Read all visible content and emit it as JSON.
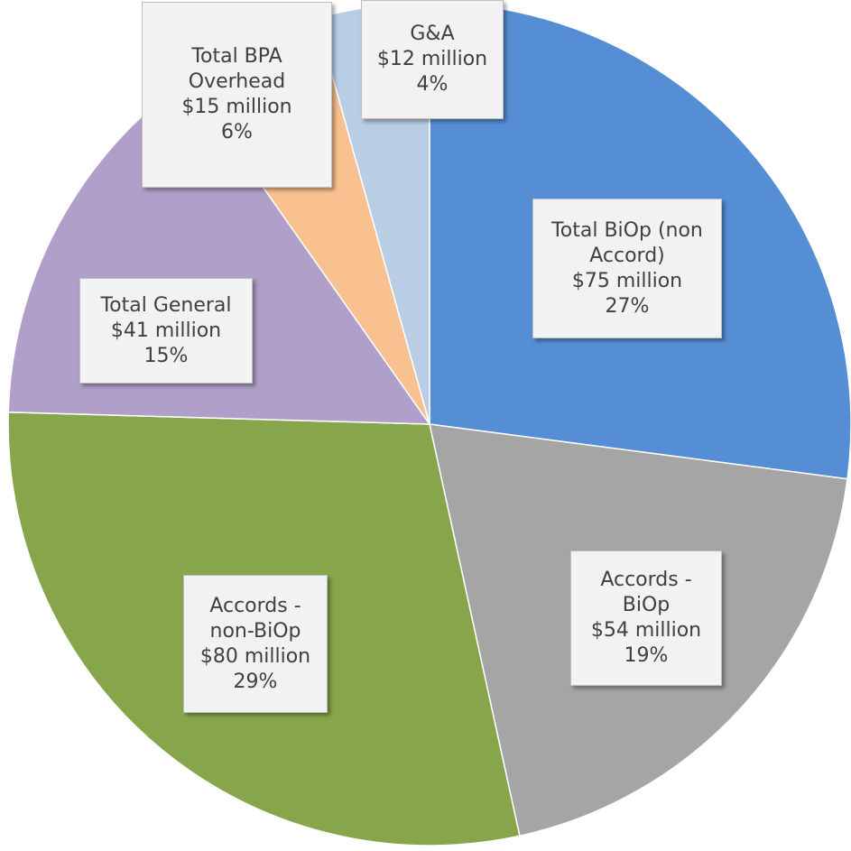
{
  "chart_data": {
    "type": "pie",
    "categories": [
      "Total BiOp (non Accord)",
      "Accords - BiOp",
      "Accords - non-BiOp",
      "Total General",
      "Total BPA Overhead",
      "G&A"
    ],
    "values": [
      75,
      54,
      80,
      41,
      15,
      12
    ],
    "value_labels": [
      "$75 million",
      "$54 million",
      "$80 million",
      "$41 million",
      "$15 million",
      "$12 million"
    ],
    "percentages": [
      27,
      19,
      29,
      15,
      6,
      4
    ],
    "percentage_labels": [
      "27%",
      "19%",
      "29%",
      "15%",
      "6%",
      "4%"
    ],
    "colors": [
      "#558ed5",
      "#a5a5a5",
      "#87a64c",
      "#b09fc8",
      "#f9c090",
      "#b9cde5"
    ]
  }
}
